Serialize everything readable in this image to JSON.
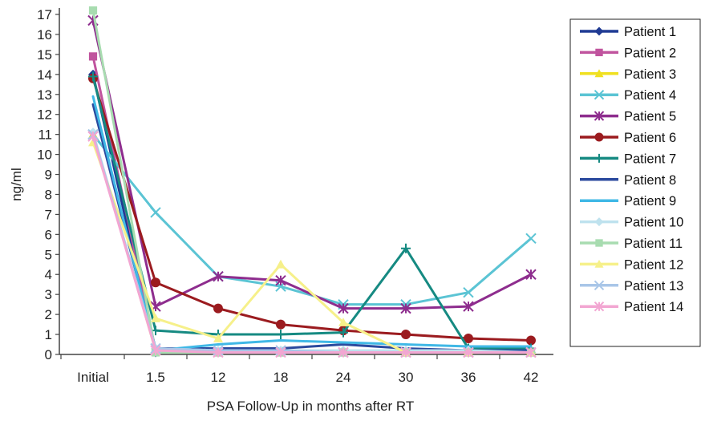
{
  "chart_data": {
    "type": "line",
    "title": "",
    "xlabel": "PSA Follow-Up in months after RT",
    "ylabel": "ng/ml",
    "categories": [
      "Initial",
      "1.5",
      "12",
      "18",
      "24",
      "30",
      "36",
      "42"
    ],
    "yticks": [
      0,
      1,
      2,
      3,
      4,
      5,
      6,
      7,
      8,
      9,
      10,
      11,
      12,
      13,
      14,
      15,
      16,
      17
    ],
    "ylim": [
      0,
      17
    ],
    "grid": false,
    "legend_position": "right",
    "series": [
      {
        "name": "Patient 1",
        "color": "#1f3a93",
        "marker": "diamond",
        "values": [
          14.0,
          0.1,
          0.1,
          0.1,
          0.1,
          0.1,
          0.1,
          0.1
        ]
      },
      {
        "name": "Patient 2",
        "color": "#c0549e",
        "marker": "square",
        "values": [
          14.9,
          0.2,
          0.1,
          0.1,
          0.1,
          0.1,
          0.1,
          0.1
        ]
      },
      {
        "name": "Patient 3",
        "color": "#f0e020",
        "marker": "triangle",
        "values": [
          11.0,
          0.2,
          0.1,
          0.1,
          0.1,
          0.1,
          0.2,
          0.2
        ]
      },
      {
        "name": "Patient 4",
        "color": "#5bc4d4",
        "marker": "x",
        "values": [
          11.0,
          7.1,
          3.9,
          3.4,
          2.5,
          2.5,
          3.1,
          5.8
        ]
      },
      {
        "name": "Patient 5",
        "color": "#8e2d8e",
        "marker": "star",
        "values": [
          16.7,
          2.4,
          3.9,
          3.7,
          2.3,
          2.3,
          2.4,
          4.0
        ]
      },
      {
        "name": "Patient 6",
        "color": "#9b1b1f",
        "marker": "circle",
        "values": [
          13.8,
          3.6,
          2.3,
          1.5,
          1.2,
          1.0,
          0.8,
          0.7
        ]
      },
      {
        "name": "Patient 7",
        "color": "#168a82",
        "marker": "plus",
        "values": [
          13.9,
          1.2,
          1.0,
          1.0,
          1.1,
          5.3,
          0.3,
          0.3
        ]
      },
      {
        "name": "Patient 8",
        "color": "#2b4a9e",
        "marker": "none",
        "values": [
          12.5,
          0.3,
          0.3,
          0.3,
          0.5,
          0.3,
          0.2,
          0.2
        ]
      },
      {
        "name": "Patient 9",
        "color": "#40b8e6",
        "marker": "none",
        "values": [
          12.9,
          0.2,
          0.5,
          0.7,
          0.6,
          0.5,
          0.4,
          0.4
        ]
      },
      {
        "name": "Patient 10",
        "color": "#bfe2ee",
        "marker": "diamond",
        "values": [
          11.1,
          0.3,
          0.2,
          0.2,
          0.2,
          0.2,
          0.2,
          0.1
        ]
      },
      {
        "name": "Patient 11",
        "color": "#a8dcb0",
        "marker": "square",
        "values": [
          17.2,
          0.1,
          0.1,
          0.1,
          0.1,
          0.1,
          0.1,
          0.1
        ]
      },
      {
        "name": "Patient 12",
        "color": "#f6f08a",
        "marker": "triangle",
        "values": [
          10.6,
          1.8,
          0.8,
          4.5,
          1.6,
          0.1,
          0.1,
          0.1
        ]
      },
      {
        "name": "Patient 13",
        "color": "#a9c6e8",
        "marker": "x",
        "values": [
          11.0,
          0.3,
          0.2,
          0.2,
          0.1,
          0.1,
          0.1,
          0.1
        ]
      },
      {
        "name": "Patient 14",
        "color": "#f2a6d2",
        "marker": "star",
        "values": [
          10.9,
          0.2,
          0.1,
          0.1,
          0.1,
          0.1,
          0.1,
          0.1
        ]
      }
    ]
  }
}
